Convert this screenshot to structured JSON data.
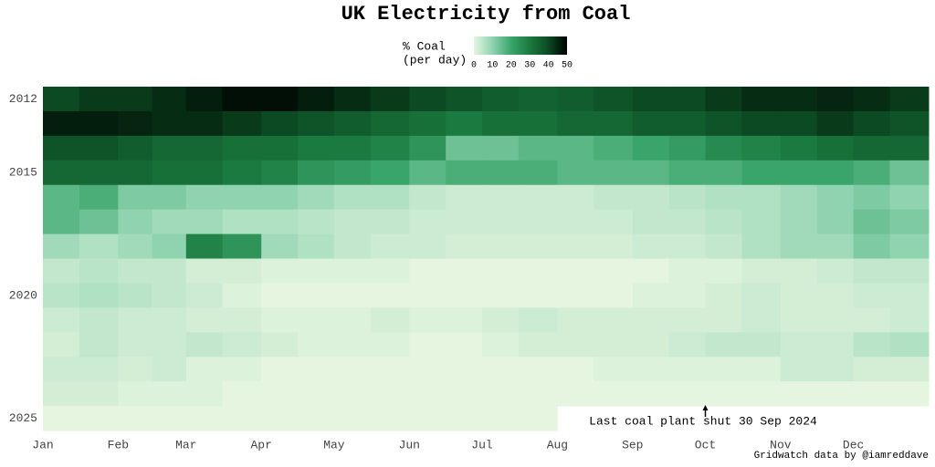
{
  "chart_data": {
    "type": "heatmap",
    "title": "UK Electricity from Coal",
    "colorbar_label": [
      "% Coal",
      "(per day)"
    ],
    "clim": [
      0,
      50
    ],
    "colorbar_ticks": [
      0,
      10,
      20,
      30,
      40,
      50
    ],
    "colors": [
      "#e5f5e0",
      "#8fd3b0",
      "#3aa56b",
      "#1b7a3f",
      "#0b4a22",
      "#000000"
    ],
    "xlim": [
      0,
      365
    ],
    "xticks": [
      {
        "value": 0,
        "label": "Jan"
      },
      {
        "value": 31,
        "label": "Feb"
      },
      {
        "value": 59,
        "label": "Mar"
      },
      {
        "value": 90,
        "label": "Apr"
      },
      {
        "value": 120,
        "label": "May"
      },
      {
        "value": 151,
        "label": "Jun"
      },
      {
        "value": 181,
        "label": "Jul"
      },
      {
        "value": 212,
        "label": "Aug"
      },
      {
        "value": 243,
        "label": "Sep"
      },
      {
        "value": 273,
        "label": "Oct"
      },
      {
        "value": 304,
        "label": "Nov"
      },
      {
        "value": 334,
        "label": "Dec"
      }
    ],
    "x": [
      0,
      15,
      31,
      45,
      59,
      74,
      90,
      105,
      120,
      135,
      151,
      166,
      181,
      196,
      212,
      227,
      243,
      258,
      273,
      288,
      304,
      319,
      334,
      349
    ],
    "y": [
      2012,
      2013,
      2014,
      2015,
      2016,
      2017,
      2018,
      2019,
      2020,
      2021,
      2022,
      2023,
      2024,
      2025
    ],
    "yticks": [
      2012,
      2015,
      2020,
      2025
    ],
    "z": [
      [
        40,
        42,
        42,
        44,
        46,
        48,
        48,
        46,
        44,
        42,
        40,
        38,
        36,
        35,
        36,
        38,
        40,
        40,
        42,
        44,
        44,
        45,
        44,
        42
      ],
      [
        46,
        46,
        45,
        44,
        44,
        42,
        40,
        38,
        36,
        34,
        32,
        30,
        32,
        32,
        34,
        34,
        36,
        36,
        38,
        40,
        40,
        42,
        40,
        38
      ],
      [
        38,
        38,
        36,
        34,
        34,
        32,
        32,
        30,
        30,
        28,
        24,
        14,
        14,
        16,
        16,
        18,
        20,
        22,
        26,
        28,
        30,
        32,
        34,
        34
      ],
      [
        34,
        34,
        34,
        32,
        32,
        30,
        28,
        24,
        22,
        20,
        16,
        18,
        18,
        18,
        16,
        16,
        16,
        18,
        18,
        20,
        20,
        20,
        18,
        14
      ],
      [
        16,
        18,
        12,
        12,
        10,
        10,
        10,
        8,
        6,
        6,
        4,
        3,
        3,
        3,
        3,
        4,
        4,
        5,
        6,
        6,
        8,
        10,
        12,
        10
      ],
      [
        16,
        14,
        10,
        8,
        8,
        6,
        6,
        5,
        4,
        4,
        3,
        3,
        3,
        3,
        3,
        3,
        4,
        4,
        5,
        6,
        8,
        10,
        14,
        12
      ],
      [
        8,
        6,
        8,
        10,
        28,
        24,
        8,
        6,
        4,
        3,
        3,
        2,
        2,
        2,
        2,
        2,
        3,
        3,
        4,
        6,
        8,
        8,
        12,
        10
      ],
      [
        4,
        5,
        4,
        4,
        2,
        2,
        1,
        1,
        1,
        1,
        0,
        0,
        0,
        0,
        0,
        0,
        0,
        1,
        1,
        2,
        2,
        3,
        4,
        4
      ],
      [
        5,
        6,
        5,
        4,
        3,
        1,
        0,
        0,
        0,
        0,
        0,
        0,
        0,
        0,
        0,
        0,
        1,
        1,
        2,
        3,
        2,
        2,
        3,
        3
      ],
      [
        3,
        4,
        3,
        3,
        2,
        2,
        1,
        1,
        1,
        2,
        1,
        1,
        2,
        3,
        2,
        2,
        2,
        2,
        2,
        3,
        2,
        2,
        2,
        3
      ],
      [
        2,
        4,
        3,
        3,
        4,
        3,
        2,
        1,
        1,
        1,
        0,
        0,
        1,
        2,
        2,
        2,
        2,
        3,
        4,
        4,
        3,
        3,
        5,
        6
      ],
      [
        3,
        3,
        2,
        3,
        1,
        1,
        0,
        0,
        0,
        0,
        0,
        0,
        0,
        0,
        0,
        1,
        1,
        1,
        1,
        1,
        3,
        3,
        2,
        2
      ],
      [
        2,
        2,
        1,
        1,
        1,
        0,
        0,
        0,
        0,
        0,
        0,
        0,
        0,
        0,
        0,
        0,
        0,
        0,
        0,
        0,
        0,
        0,
        0,
        0
      ],
      [
        0,
        0,
        0,
        0,
        0,
        0,
        0,
        0,
        0,
        0,
        0,
        0,
        0,
        0,
        null,
        null,
        null,
        null,
        null,
        null,
        null,
        null,
        null,
        null
      ]
    ],
    "annotation": {
      "text": "Last coal plant shut 30 Sep 2024",
      "x": 273
    },
    "caption": "Gridwatch data by @iamreddave"
  }
}
